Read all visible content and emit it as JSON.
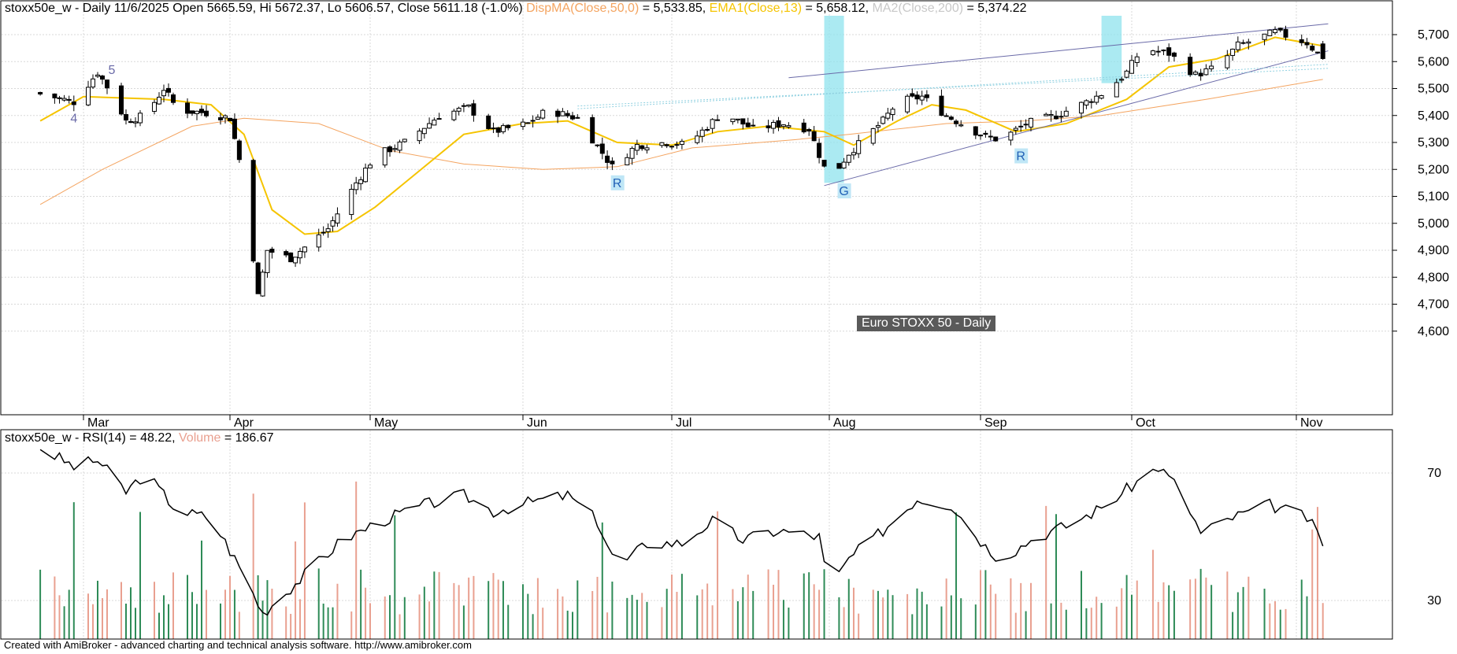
{
  "header": {
    "symbol": "stoxx50e_w",
    "sep": " - ",
    "period": "Daily",
    "date": "11/6/2025",
    "ohlc_text": "Open 5665.59, Hi 5672.37, Lo 5606.57, Close 5611.18 (-1.0%)",
    "ma50_label": "DispMA(Close,50,0)",
    "ma50_value": " = 5,533.85, ",
    "ema_label": "EMA1(Close,13)",
    "ema_value": " = 5,658.12, ",
    "ma200_label": "MA2(Close,200)",
    "ma200_value": " = 5,374.22"
  },
  "lower_header": {
    "rsi_label": "stoxx50e_w - RSI(14) = 48.22, ",
    "volume_label": "Volume",
    "volume_value": " = 186.67"
  },
  "note_label": "Euro STOXX 50 - Daily",
  "footer": "Created with AmiBroker - advanced charting and technical analysis software. http://www.amibroker.com",
  "colors": {
    "ma50": "#f4a460",
    "ema": "#f5c400",
    "ma200": "#c8c8c8",
    "rsi": "#000000",
    "volume_up": "#2e8b57",
    "volume_down": "#e9a090",
    "highlight": "#8fe3ee",
    "marker_bg": "#bfe6f6",
    "marker_text": "#1f5fb5",
    "grid": "#d8d8d8"
  },
  "chart_data": [
    {
      "type": "candlestick",
      "title": "Euro STOXX 50 - Daily",
      "y_ticks": [
        4600,
        4700,
        4800,
        4900,
        5000,
        5100,
        5200,
        5300,
        5400,
        5500,
        5600,
        5700
      ],
      "y_tick_labels": [
        "4,600",
        "4,700",
        "4,800",
        "4,900",
        "5,000",
        "5,100",
        "5,200",
        "5,300",
        "5,400",
        "5,500",
        "5,600",
        "5,700"
      ],
      "x_tick_labels": [
        "Mar",
        "Apr",
        "May",
        "Jun",
        "Jul",
        "Aug",
        "Sep",
        "Oct",
        "Nov"
      ],
      "last_bar": {
        "date": "11/6/2025",
        "open": 5665.59,
        "high": 5672.37,
        "low": 5606.57,
        "close": 5611.18
      },
      "indicator_values": {
        "DispMA(Close,50,0)": 5533.85,
        "EMA1(Close,13)": 5658.12,
        "MA2(Close,200)": 5374.22
      },
      "close_path": [
        [
          "Feb-20",
          5480
        ],
        [
          "Feb-27",
          5450
        ],
        [
          "Mar-04",
          5560
        ],
        [
          "Mar-07",
          5480
        ],
        [
          "Mar-10",
          5380
        ],
        [
          "Mar-14",
          5400
        ],
        [
          "Mar-18",
          5500
        ],
        [
          "Mar-21",
          5420
        ],
        [
          "Mar-27",
          5410
        ],
        [
          "Apr-01",
          5390
        ],
        [
          "Apr-04",
          5160
        ],
        [
          "Apr-07",
          4730
        ],
        [
          "Apr-09",
          4900
        ],
        [
          "Apr-14",
          4870
        ],
        [
          "Apr-22",
          4980
        ],
        [
          "Apr-28",
          5150
        ],
        [
          "May-02",
          5250
        ],
        [
          "May-08",
          5300
        ],
        [
          "May-15",
          5400
        ],
        [
          "May-21",
          5430
        ],
        [
          "May-26",
          5340
        ],
        [
          "Jun-02",
          5370
        ],
        [
          "Jun-06",
          5420
        ],
        [
          "Jun-12",
          5390
        ],
        [
          "Jun-19",
          5210
        ],
        [
          "Jun-24",
          5290
        ],
        [
          "Jun-30",
          5300
        ],
        [
          "Jul-04",
          5290
        ],
        [
          "Jul-08",
          5360
        ],
        [
          "Jul-11",
          5410
        ],
        [
          "Jul-17",
          5350
        ],
        [
          "Jul-23",
          5370
        ],
        [
          "Jul-28",
          5350
        ],
        [
          "Aug-01",
          5160
        ],
        [
          "Aug-05",
          5260
        ],
        [
          "Aug-08",
          5310
        ],
        [
          "Aug-12",
          5380
        ],
        [
          "Aug-15",
          5450
        ],
        [
          "Aug-20",
          5470
        ],
        [
          "Aug-25",
          5400
        ],
        [
          "Sep-02",
          5320
        ],
        [
          "Sep-05",
          5310
        ],
        [
          "Sep-10",
          5370
        ],
        [
          "Sep-16",
          5400
        ],
        [
          "Sep-22",
          5450
        ],
        [
          "Sep-26",
          5490
        ],
        [
          "Sep-30",
          5560
        ],
        [
          "Oct-03",
          5650
        ],
        [
          "Oct-08",
          5630
        ],
        [
          "Oct-13",
          5550
        ],
        [
          "Oct-17",
          5580
        ],
        [
          "Oct-21",
          5660
        ],
        [
          "Oct-24",
          5680
        ],
        [
          "Oct-28",
          5710
        ],
        [
          "Oct-31",
          5690
        ],
        [
          "Nov-03",
          5670
        ],
        [
          "Nov-06",
          5611.18
        ]
      ],
      "ema13_path": [
        [
          "Feb-20",
          5380
        ],
        [
          "Mar-01",
          5470
        ],
        [
          "Mar-18",
          5460
        ],
        [
          "Mar-28",
          5440
        ],
        [
          "Apr-04",
          5330
        ],
        [
          "Apr-10",
          5050
        ],
        [
          "Apr-17",
          4960
        ],
        [
          "Apr-24",
          4970
        ],
        [
          "May-02",
          5060
        ],
        [
          "May-10",
          5180
        ],
        [
          "May-20",
          5330
        ],
        [
          "Jun-01",
          5370
        ],
        [
          "Jun-10",
          5380
        ],
        [
          "Jun-20",
          5300
        ],
        [
          "Jul-01",
          5290
        ],
        [
          "Jul-10",
          5340
        ],
        [
          "Jul-20",
          5360
        ],
        [
          "Jul-31",
          5340
        ],
        [
          "Aug-06",
          5290
        ],
        [
          "Aug-15",
          5380
        ],
        [
          "Aug-22",
          5440
        ],
        [
          "Aug-29",
          5420
        ],
        [
          "Sep-08",
          5340
        ],
        [
          "Sep-18",
          5370
        ],
        [
          "Sep-30",
          5460
        ],
        [
          "Oct-08",
          5580
        ],
        [
          "Oct-17",
          5610
        ],
        [
          "Oct-28",
          5690
        ],
        [
          "Nov-06",
          5658.12
        ]
      ],
      "ma50_path": [
        [
          "Feb-20",
          5070
        ],
        [
          "Mar-05",
          5200
        ],
        [
          "Mar-24",
          5360
        ],
        [
          "Apr-04",
          5390
        ],
        [
          "Apr-20",
          5370
        ],
        [
          "May-05",
          5270
        ],
        [
          "May-20",
          5220
        ],
        [
          "Jun-05",
          5200
        ],
        [
          "Jun-20",
          5210
        ],
        [
          "Jul-05",
          5280
        ],
        [
          "Jul-25",
          5310
        ],
        [
          "Aug-05",
          5330
        ],
        [
          "Aug-25",
          5370
        ],
        [
          "Sep-10",
          5380
        ],
        [
          "Sep-25",
          5400
        ],
        [
          "Oct-15",
          5460
        ],
        [
          "Nov-06",
          5533.85
        ]
      ],
      "annotations": [
        {
          "label": "4",
          "date": "Feb-27",
          "price": 5380
        },
        {
          "label": "5",
          "date": "Mar-07",
          "price": 5560
        },
        {
          "label": "R",
          "date": "Jun-20",
          "price": 5140
        },
        {
          "label": "G",
          "date": "Aug-04",
          "price": 5110
        },
        {
          "label": "R",
          "date": "Sep-09",
          "price": 5240
        }
      ],
      "trendlines": [
        {
          "from": [
            "Jul-24",
            5540
          ],
          "to": [
            "Nov-07",
            5740
          ]
        },
        {
          "from": [
            "Jul-31",
            5140
          ],
          "to": [
            "Nov-07",
            5640
          ]
        }
      ],
      "highlight_zones": [
        [
          "Jul-31",
          "Aug-04"
        ],
        [
          "Sep-25",
          "Sep-29"
        ]
      ]
    },
    {
      "type": "line",
      "series": [
        {
          "name": "RSI(14)",
          "last_value": 48.22
        },
        {
          "name": "Volume",
          "last_value": 186.67
        }
      ],
      "y_ticks": [
        30,
        70
      ],
      "y_tick_labels": [
        "30",
        "70"
      ],
      "rsi_path": [
        [
          "Feb-20",
          78
        ],
        [
          "Feb-27",
          72
        ],
        [
          "Mar-04",
          74
        ],
        [
          "Mar-10",
          64
        ],
        [
          "Mar-14",
          70
        ],
        [
          "Mar-21",
          58
        ],
        [
          "Mar-28",
          56
        ],
        [
          "Apr-04",
          38
        ],
        [
          "Apr-08",
          26
        ],
        [
          "Apr-11",
          30
        ],
        [
          "Apr-17",
          38
        ],
        [
          "Apr-25",
          49
        ],
        [
          "May-05",
          56
        ],
        [
          "May-12",
          60
        ],
        [
          "May-20",
          63
        ],
        [
          "May-26",
          58
        ],
        [
          "Jun-03",
          61
        ],
        [
          "Jun-10",
          63
        ],
        [
          "Jun-16",
          55
        ],
        [
          "Jun-20",
          40
        ],
        [
          "Jun-26",
          48
        ],
        [
          "Jul-03",
          48
        ],
        [
          "Jul-09",
          55
        ],
        [
          "Jul-15",
          49
        ],
        [
          "Jul-22",
          52
        ],
        [
          "Jul-30",
          50
        ],
        [
          "Aug-01",
          33
        ],
        [
          "Aug-05",
          43
        ],
        [
          "Aug-12",
          52
        ],
        [
          "Aug-19",
          62
        ],
        [
          "Aug-26",
          60
        ],
        [
          "Sep-02",
          47
        ],
        [
          "Sep-05",
          43
        ],
        [
          "Sep-12",
          50
        ],
        [
          "Sep-19",
          54
        ],
        [
          "Sep-26",
          60
        ],
        [
          "Oct-01",
          66
        ],
        [
          "Oct-06",
          72
        ],
        [
          "Oct-10",
          65
        ],
        [
          "Oct-14",
          51
        ],
        [
          "Oct-20",
          56
        ],
        [
          "Oct-27",
          60
        ],
        [
          "Nov-03",
          56
        ],
        [
          "Nov-06",
          48.22
        ]
      ]
    }
  ]
}
